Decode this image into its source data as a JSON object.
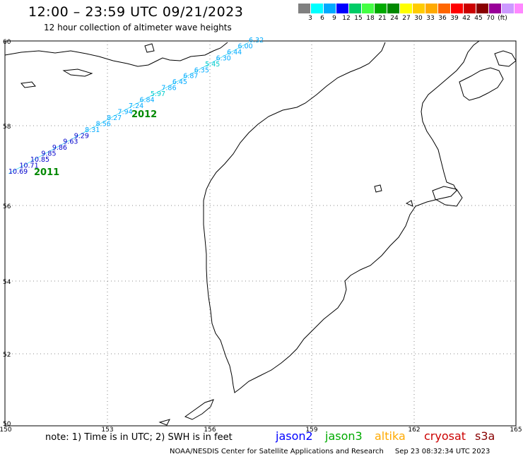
{
  "header": {
    "title": "12:00 – 23:59 UTC 09/21/2023",
    "subtitle": "12 hour collection of altimeter wave heights"
  },
  "color_scale": {
    "colors": [
      "#808080",
      "#00ffff",
      "#00aaff",
      "#0000ff",
      "#00cc66",
      "#44ff44",
      "#00aa00",
      "#008800",
      "#ffff00",
      "#ffcc00",
      "#ffaa00",
      "#ff6600",
      "#ff0000",
      "#cc0000",
      "#880000",
      "#990099",
      "#cc99ff",
      "#ff88ff",
      "#000000"
    ],
    "labels": [
      "3",
      "6",
      "9",
      "12",
      "15",
      "18",
      "21",
      "24",
      "27",
      "30",
      "33",
      "36",
      "39",
      "42",
      "45",
      "70"
    ],
    "unit": "(ft)"
  },
  "map": {
    "lat_labels": [
      "60",
      "58",
      "56",
      "54",
      "52",
      "50"
    ],
    "lon_labels": [
      "150",
      "153",
      "156",
      "159",
      "162",
      "165"
    ],
    "passes": [
      {
        "label": "2011",
        "color": "#008800"
      },
      {
        "label": "2012",
        "color": "#008800"
      }
    ],
    "track_values": [
      "10.69",
      "10.71",
      "10.85",
      "9.85",
      "9.86",
      "9.63",
      "9.29",
      "8.31",
      "8.56",
      "8.27",
      "7.94",
      "7.24",
      "6.84",
      "5.97",
      "7.86",
      "6.45",
      "6.87",
      "6.35",
      "5.45",
      "6.30",
      "6.44",
      "6.00",
      "6.32"
    ]
  },
  "footer": {
    "note": "note: 1) Time is in UTC; 2) SWH is in feet",
    "satellites": [
      {
        "name": "jason2",
        "color": "#0000ff"
      },
      {
        "name": "jason3",
        "color": "#00aa00"
      },
      {
        "name": "altika",
        "color": "#ffaa00"
      },
      {
        "name": "cryosat",
        "color": "#cc0000"
      },
      {
        "name": "s3a",
        "color": "#880000"
      }
    ],
    "credit": "NOAA/NESDIS Center for Satellite Applications and Research",
    "timestamp": "Sep 23 08:32:34 UTC 2023"
  }
}
